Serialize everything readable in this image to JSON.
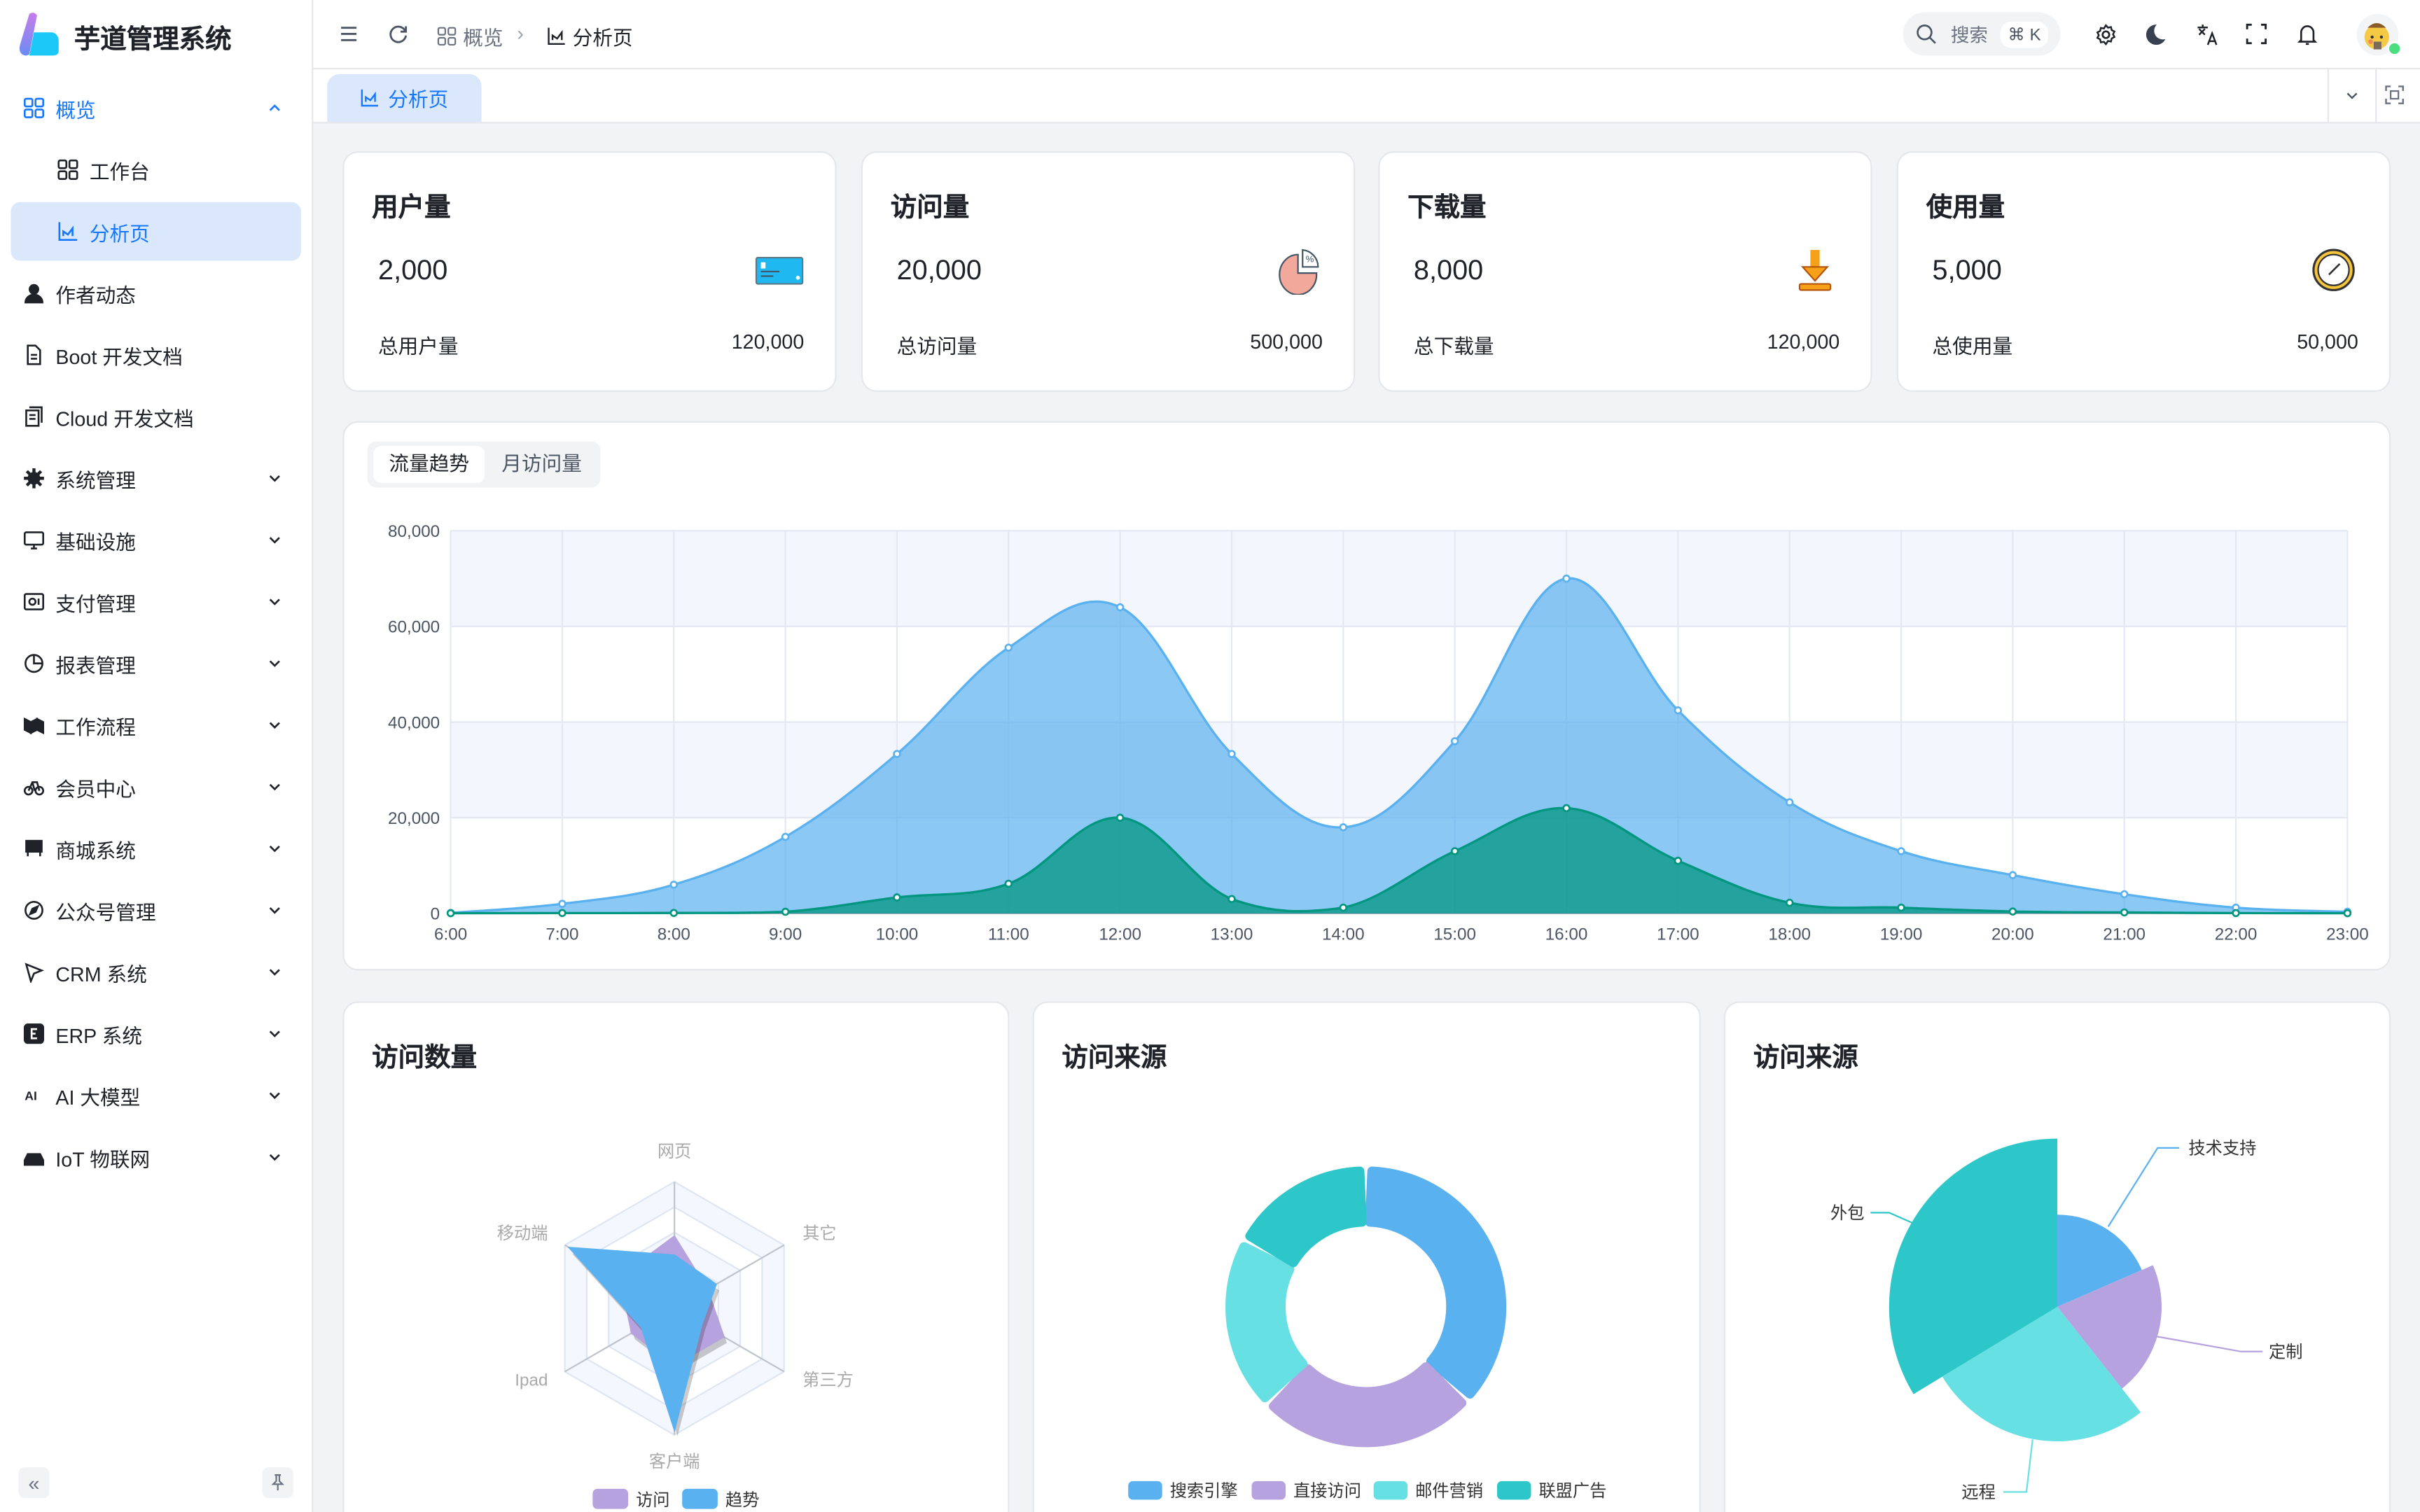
{
  "app": {
    "title": "芋道管理系统"
  },
  "sidebar": {
    "items": [
      {
        "label": "概览",
        "icon": "grid",
        "state": "open-parent"
      },
      {
        "label": "工作台",
        "icon": "grid",
        "state": "child"
      },
      {
        "label": "分析页",
        "icon": "chart",
        "state": "child-active"
      },
      {
        "label": "作者动态",
        "icon": "user"
      },
      {
        "label": "Boot 开发文档",
        "icon": "doc"
      },
      {
        "label": "Cloud 开发文档",
        "icon": "docs"
      },
      {
        "label": "系统管理",
        "icon": "gear",
        "expandable": true
      },
      {
        "label": "基础设施",
        "icon": "monitor",
        "expandable": true
      },
      {
        "label": "支付管理",
        "icon": "wallet",
        "expandable": true
      },
      {
        "label": "报表管理",
        "icon": "pie",
        "expandable": true
      },
      {
        "label": "工作流程",
        "icon": "flow",
        "expandable": true
      },
      {
        "label": "会员中心",
        "icon": "bike",
        "expandable": true
      },
      {
        "label": "商城系统",
        "icon": "store",
        "expandable": true
      },
      {
        "label": "公众号管理",
        "icon": "compass",
        "expandable": true
      },
      {
        "label": "CRM 系统",
        "icon": "crm",
        "expandable": true
      },
      {
        "label": "ERP 系统",
        "icon": "erp",
        "expandable": true
      },
      {
        "label": "AI 大模型",
        "icon": "ai",
        "expandable": true
      },
      {
        "label": "IoT 物联网",
        "icon": "iot",
        "expandable": true
      }
    ]
  },
  "header": {
    "breadcrumb": [
      "概览",
      "分析页"
    ],
    "search_placeholder": "搜索",
    "search_shortcut": "⌘ K"
  },
  "tabs": [
    {
      "label": "分析页",
      "active": true
    }
  ],
  "stats": [
    {
      "title": "用户量",
      "value": "2,000",
      "footer_label": "总用户量",
      "footer_value": "120,000",
      "icon": "card"
    },
    {
      "title": "访问量",
      "value": "20,000",
      "footer_label": "总访问量",
      "footer_value": "500,000",
      "icon": "pie-percent"
    },
    {
      "title": "下载量",
      "value": "8,000",
      "footer_label": "总下载量",
      "footer_value": "120,000",
      "icon": "download"
    },
    {
      "title": "使用量",
      "value": "5,000",
      "footer_label": "总使用量",
      "footer_value": "50,000",
      "icon": "clock"
    }
  ],
  "trend": {
    "tabs": [
      "流量趋势",
      "月访问量"
    ],
    "active_tab": 0
  },
  "colors": {
    "accent": "#1677ff",
    "blue": "#5ab1ef",
    "green": "#019680",
    "purple": "#b6a2de",
    "cyan": "#67e0e3",
    "teal": "#2ec7c9"
  },
  "chart_data": [
    {
      "type": "area",
      "categories": [
        "6:00",
        "7:00",
        "8:00",
        "9:00",
        "10:00",
        "11:00",
        "12:00",
        "13:00",
        "14:00",
        "15:00",
        "16:00",
        "17:00",
        "18:00",
        "19:00",
        "20:00",
        "21:00",
        "22:00",
        "23:00"
      ],
      "series": [
        {
          "values": [
            111,
            2000,
            6000,
            16000,
            33333,
            55555,
            64000,
            33333,
            18000,
            36000,
            70000,
            42444,
            23222,
            13000,
            8000,
            4000,
            1200,
            333
          ],
          "color": "#5ab1ef"
        },
        {
          "values": [
            33,
            66,
            88,
            333,
            3333,
            6200,
            20000,
            3000,
            1200,
            13000,
            22000,
            11000,
            2221,
            1201,
            390,
            198,
            60,
            30
          ],
          "color": "#019680"
        }
      ],
      "ylim": [
        0,
        80000
      ],
      "yticks": [
        "0",
        "20,000",
        "40,000",
        "60,000",
        "80,000"
      ],
      "smooth": true,
      "grid": true
    },
    {
      "type": "radar",
      "title": "访问数量",
      "indicators": [
        "网页",
        "移动端",
        "Ipad",
        "客户端",
        "第三方",
        "其它"
      ],
      "series": [
        {
          "name": "访问",
          "values": [
            57,
            50,
            39,
            45,
            45,
            30
          ],
          "color": "#b6a2de"
        },
        {
          "name": "趋势",
          "values": [
            42,
            96,
            30,
            96,
            25,
            38
          ],
          "color": "#5ab1ef"
        }
      ],
      "max": 100,
      "legend": "bottom"
    },
    {
      "type": "pie",
      "title": "访问来源",
      "donut": true,
      "slices": [
        {
          "name": "搜索引擎",
          "value": 1048,
          "color": "#5ab1ef"
        },
        {
          "name": "直接访问",
          "value": 735,
          "color": "#b6a2de"
        },
        {
          "name": "邮件营销",
          "value": 580,
          "color": "#67e0e3"
        },
        {
          "name": "联盟广告",
          "value": 484,
          "color": "#2ec7c9"
        }
      ],
      "legend": "bottom"
    },
    {
      "type": "pie",
      "title": "访问来源",
      "rose": "radius",
      "slices": [
        {
          "name": "技术支持",
          "value": 274,
          "color": "#5ab1ef"
        },
        {
          "name": "定制",
          "value": 310,
          "color": "#b6a2de"
        },
        {
          "name": "远程",
          "value": 400,
          "color": "#67e0e3"
        },
        {
          "name": "外包",
          "value": 500,
          "color": "#2ec7c9"
        }
      ]
    }
  ]
}
